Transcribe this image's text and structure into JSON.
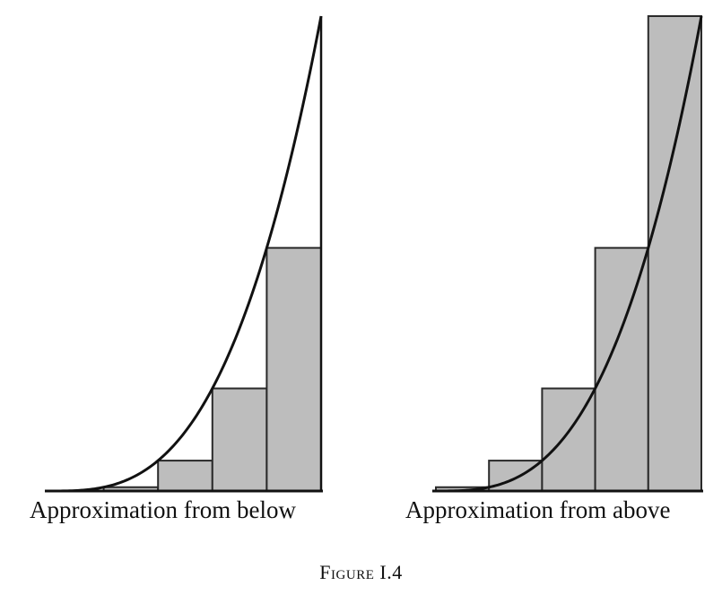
{
  "panels": [
    {
      "caption": "Approximation from below",
      "method": "lower",
      "n_rectangles": 5
    },
    {
      "caption": "Approximation from above",
      "method": "upper",
      "n_rectangles": 5
    }
  ],
  "figure_label": {
    "word": "Figure",
    "number": "I.4"
  },
  "colors": {
    "rectangle_fill": "#bdbdbd",
    "rectangle_stroke": "#2a2a2a",
    "curve": "#111111",
    "axis": "#111111"
  }
}
